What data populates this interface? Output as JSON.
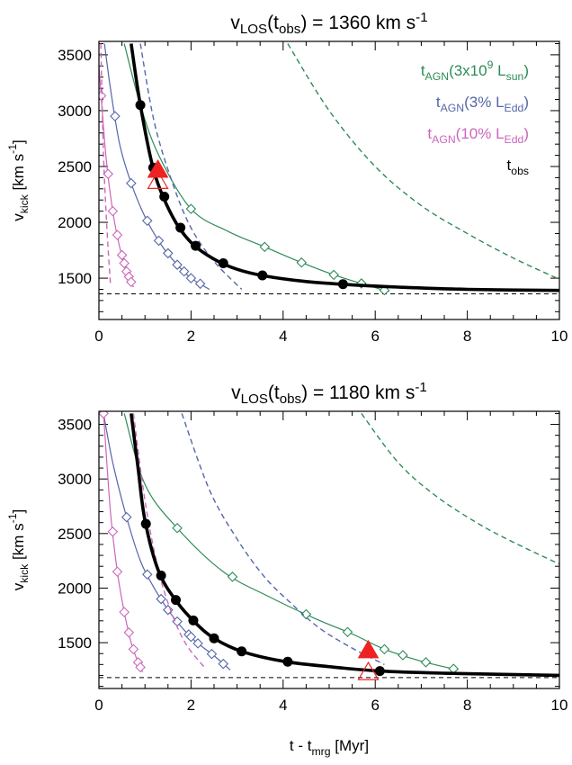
{
  "chart_data": [
    {
      "type": "line",
      "title": {
        "base": "v",
        "sub": "LOS",
        "paren_base": "t",
        "paren_sub": "obs",
        "rest": " = 1360 km s",
        "sup": "-1"
      },
      "xlabel": "",
      "ylabel": {
        "base": "v",
        "sub": "kick",
        "unit": " [km s",
        "sup": "-1",
        "end": "]"
      },
      "xlim": [
        0,
        10
      ],
      "ylim": [
        1130,
        3620
      ],
      "x_ticks": [
        0,
        2,
        4,
        6,
        8,
        10
      ],
      "y_ticks": [
        1500,
        2000,
        2500,
        3000,
        3500
      ],
      "vlos_line": 1360,
      "legend": [
        {
          "series": "green",
          "color": "#2e8b57",
          "base": "t",
          "sub": "AGN",
          "mid": "(3x10",
          "sup": "9",
          "mid2": " L",
          "sub2": "sun",
          "end": ")"
        },
        {
          "series": "blue",
          "color": "#5566aa",
          "base": "t",
          "sub": "AGN",
          "mid": "(3% L",
          "sub2": "Edd",
          "end": ")"
        },
        {
          "series": "magenta",
          "color": "#cc66bb",
          "base": "t",
          "sub": "AGN",
          "mid": "(10% L",
          "sub2": "Edd",
          "end": ")"
        },
        {
          "series": "black",
          "color": "#000000",
          "base": "t",
          "sub": "obs"
        }
      ],
      "series": [
        {
          "name": "green-solid",
          "color": "#2e8b57",
          "style": "solid",
          "marker": "diamond",
          "x": [
            0.55,
            0.9,
            1.3,
            2.0,
            2.8,
            3.6,
            4.4,
            5.1,
            5.8,
            6.3
          ],
          "y": [
            3600,
            3050,
            2600,
            2120,
            1920,
            1780,
            1640,
            1530,
            1440,
            1380
          ],
          "markers_x": [
            2.0,
            3.6,
            4.4,
            5.1,
            5.7,
            6.2
          ]
        },
        {
          "name": "green-dashed",
          "color": "#2e8b57",
          "style": "dashed",
          "x": [
            4.1,
            5.0,
            6.0,
            7.0,
            8.0,
            9.0,
            10.0
          ],
          "y": [
            3600,
            3000,
            2500,
            2150,
            1900,
            1680,
            1490
          ]
        },
        {
          "name": "blue-solid",
          "color": "#5566aa",
          "style": "solid",
          "marker": "diamond",
          "x": [
            0.12,
            0.25,
            0.45,
            0.7,
            1.0,
            1.35,
            1.7,
            2.0,
            2.4
          ],
          "y": [
            3600,
            3200,
            2700,
            2350,
            2050,
            1800,
            1620,
            1500,
            1400
          ],
          "markers_x": [
            0.35,
            0.7,
            1.05,
            1.3,
            1.5,
            1.7,
            1.85,
            2.0,
            2.2
          ]
        },
        {
          "name": "blue-dashed",
          "color": "#5566aa",
          "style": "dashed",
          "x": [
            0.9,
            1.2,
            1.6,
            2.0,
            2.5,
            3.1
          ],
          "y": [
            3600,
            2900,
            2350,
            1950,
            1650,
            1400
          ]
        },
        {
          "name": "magenta-solid",
          "color": "#cc66bb",
          "style": "solid",
          "marker": "diamond",
          "x": [
            0.0,
            0.15,
            0.3,
            0.45,
            0.6,
            0.75
          ],
          "y": [
            3400,
            2600,
            2100,
            1780,
            1560,
            1420
          ],
          "markers_x": [
            0.05,
            0.2,
            0.3,
            0.4,
            0.5,
            0.55,
            0.6,
            0.65,
            0.7
          ]
        },
        {
          "name": "magenta-dashed",
          "color": "#cc66bb",
          "style": "dashed",
          "x": [
            0.04,
            0.1,
            0.18,
            0.25
          ],
          "y": [
            3600,
            2600,
            1900,
            1450
          ]
        },
        {
          "name": "black-thick",
          "color": "#000000",
          "style": "thick",
          "x": [
            0.7,
            0.9,
            1.2,
            1.6,
            2.0,
            2.5,
            3.0,
            3.6,
            4.5,
            5.5,
            6.5,
            8.0,
            10.0
          ],
          "y": [
            3600,
            3050,
            2450,
            2050,
            1820,
            1670,
            1580,
            1520,
            1470,
            1440,
            1420,
            1400,
            1390
          ],
          "markers_x": [
            0.9,
            1.18,
            1.42,
            1.77,
            2.1,
            2.7,
            3.55,
            5.3
          ]
        }
      ],
      "triangles": [
        {
          "kind": "filled",
          "x": 1.28,
          "y": 2480,
          "color": "#ee2222"
        },
        {
          "kind": "open",
          "x": 1.28,
          "y": 2380,
          "color": "#ee2222"
        }
      ]
    },
    {
      "type": "line",
      "title": {
        "base": "v",
        "sub": "LOS",
        "paren_base": "t",
        "paren_sub": "obs",
        "rest": " = 1180 km s",
        "sup": "-1"
      },
      "xlabel": {
        "base": "t - t",
        "sub": "mrg",
        "end": " [Myr]"
      },
      "ylabel": {
        "base": "v",
        "sub": "kick",
        "unit": " [km s",
        "sup": "-1",
        "end": "]"
      },
      "xlim": [
        0,
        10
      ],
      "ylim": [
        1080,
        3620
      ],
      "x_ticks": [
        0,
        2,
        4,
        6,
        8,
        10
      ],
      "y_ticks": [
        1500,
        2000,
        2500,
        3000,
        3500
      ],
      "vlos_line": 1180,
      "series": [
        {
          "name": "green-solid",
          "color": "#2e8b57",
          "style": "solid",
          "marker": "diamond",
          "x": [
            0.55,
            1.0,
            1.7,
            2.7,
            3.7,
            4.7,
            5.5,
            6.2,
            7.0,
            7.8
          ],
          "y": [
            3600,
            2950,
            2550,
            2150,
            1920,
            1720,
            1580,
            1440,
            1330,
            1250
          ],
          "markers_x": [
            1.7,
            2.9,
            4.5,
            5.4,
            6.2,
            6.6,
            7.1,
            7.7
          ]
        },
        {
          "name": "green-dashed",
          "color": "#2e8b57",
          "style": "dashed",
          "x": [
            5.7,
            6.5,
            7.3,
            8.2,
            9.0,
            10.0
          ],
          "y": [
            3600,
            3150,
            2850,
            2600,
            2420,
            2220
          ]
        },
        {
          "name": "blue-solid",
          "color": "#5566aa",
          "style": "solid",
          "marker": "diamond",
          "x": [
            0.1,
            0.3,
            0.6,
            0.9,
            1.2,
            1.5,
            1.8,
            2.1,
            2.5,
            2.85
          ],
          "y": [
            3600,
            3150,
            2650,
            2250,
            2000,
            1800,
            1640,
            1510,
            1380,
            1250
          ],
          "markers_x": [
            0.6,
            1.05,
            1.35,
            1.5,
            1.7,
            1.95,
            2.0,
            2.15,
            2.45,
            2.7
          ]
        },
        {
          "name": "blue-dashed",
          "color": "#5566aa",
          "style": "dashed",
          "x": [
            1.8,
            2.4,
            3.0,
            3.6,
            4.2,
            4.8,
            5.5,
            6.2
          ],
          "y": [
            3600,
            2900,
            2450,
            2100,
            1850,
            1630,
            1450,
            1300
          ]
        },
        {
          "name": "magenta-solid",
          "color": "#cc66bb",
          "style": "solid",
          "marker": "diamond",
          "x": [
            0.1,
            0.25,
            0.4,
            0.55,
            0.7,
            0.85,
            0.95
          ],
          "y": [
            3600,
            2700,
            2150,
            1780,
            1500,
            1320,
            1230
          ],
          "markers_x": [
            0.1,
            0.3,
            0.4,
            0.55,
            0.65,
            0.75,
            0.85,
            0.9
          ]
        },
        {
          "name": "magenta-dashed",
          "color": "#cc66bb",
          "style": "dashed",
          "x": [
            0.75,
            1.0,
            1.3,
            1.6,
            1.9,
            2.3
          ],
          "y": [
            3600,
            2800,
            2150,
            1750,
            1480,
            1270
          ]
        },
        {
          "name": "black-thick",
          "color": "#000000",
          "style": "thick",
          "x": [
            0.7,
            0.85,
            1.0,
            1.3,
            1.7,
            2.1,
            2.5,
            3.1,
            4.0,
            5.0,
            6.1,
            7.5,
            10.0
          ],
          "y": [
            3600,
            3100,
            2620,
            2150,
            1870,
            1680,
            1540,
            1420,
            1330,
            1280,
            1240,
            1220,
            1200
          ],
          "markers_x": [
            1.02,
            1.35,
            1.67,
            2.05,
            2.5,
            3.1,
            4.1,
            6.1
          ]
        }
      ],
      "triangles": [
        {
          "kind": "filled",
          "x": 5.85,
          "y": 1440,
          "color": "#ee2222"
        },
        {
          "kind": "open",
          "x": 5.85,
          "y": 1240,
          "color": "#ee2222"
        }
      ]
    }
  ]
}
